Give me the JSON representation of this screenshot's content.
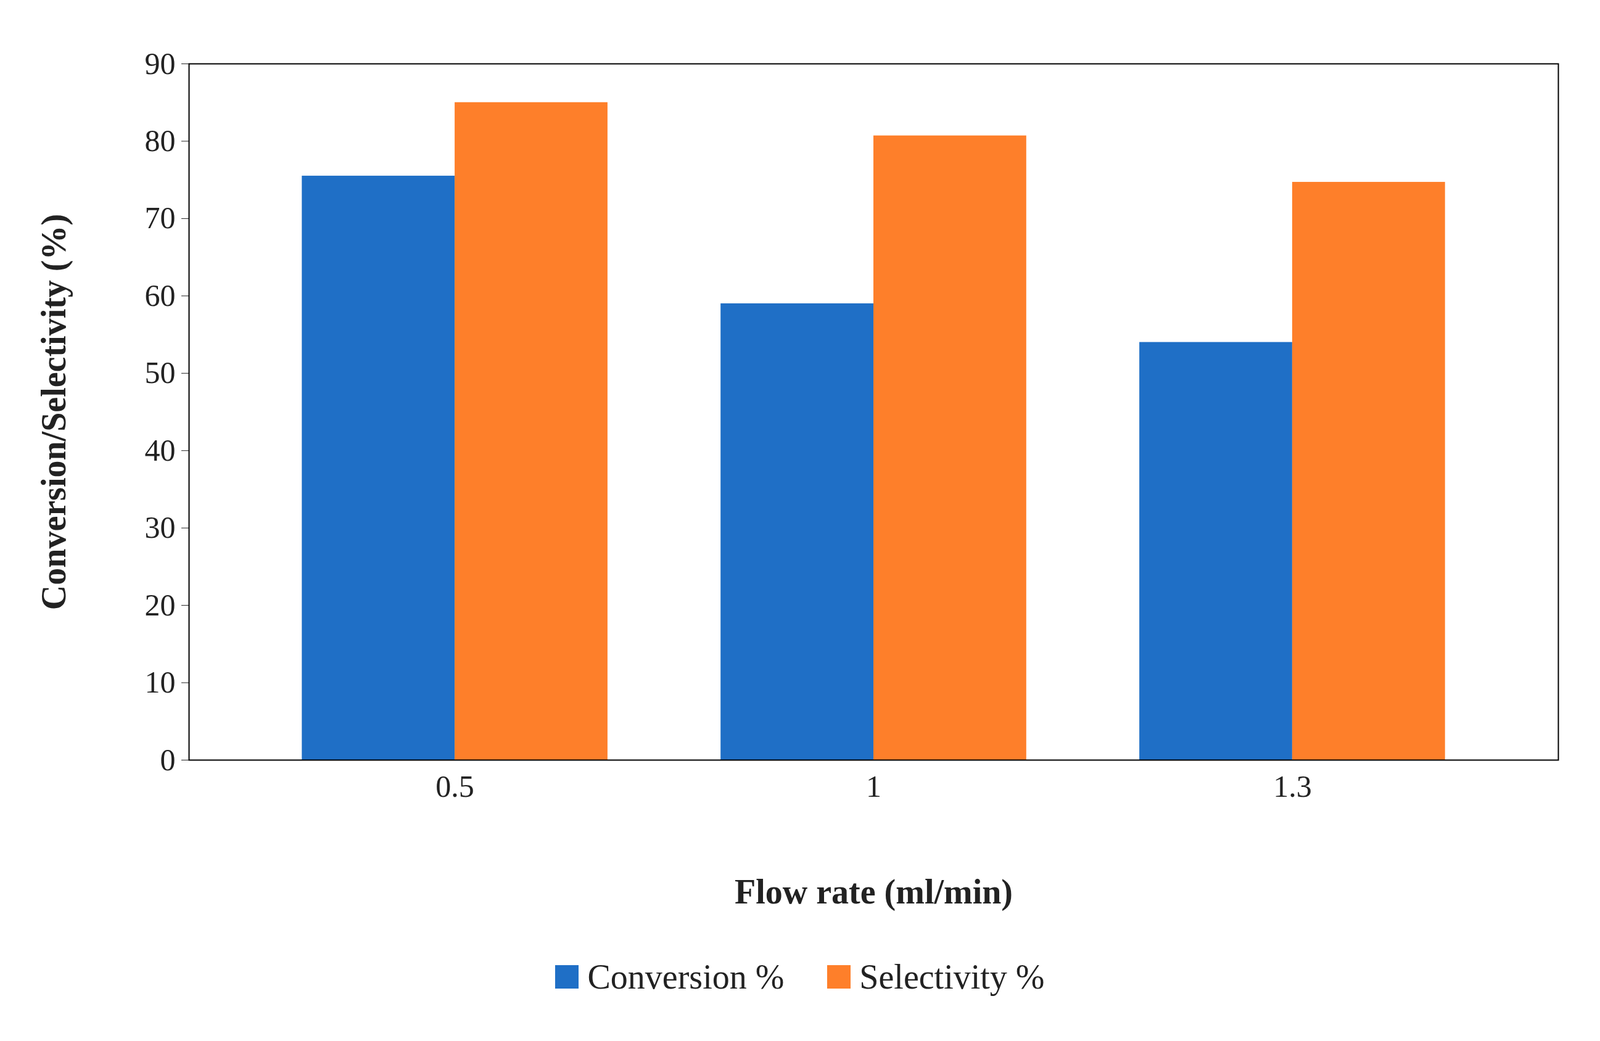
{
  "chart_data": {
    "type": "bar",
    "x_label": "Flow rate (ml/min)",
    "y_label": "Conversion/Selectivity (%)",
    "categories": [
      "0.5",
      "1",
      "1.3"
    ],
    "series": [
      {
        "name": "Conversion %",
        "color": "#1f6fc6",
        "values": [
          75.5,
          59,
          54
        ]
      },
      {
        "name": "Selectivity %",
        "color": "#fe7f2a",
        "values": [
          85,
          80.7,
          74.7
        ]
      }
    ],
    "ylim": [
      0,
      90
    ],
    "yticks": [
      0,
      10,
      20,
      30,
      40,
      50,
      60,
      70,
      80,
      90
    ],
    "grid": false,
    "legend": "bottom"
  }
}
